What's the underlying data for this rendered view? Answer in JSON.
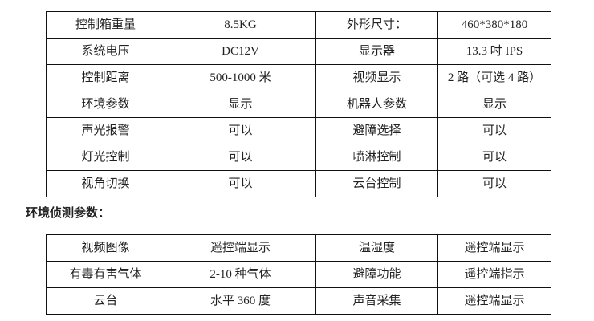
{
  "spec_table": [
    [
      "控制箱重量",
      "8.5KG",
      "外形尺寸：",
      "460*380*180"
    ],
    [
      "系统电压",
      "DC12V",
      "显示器",
      "13.3 吋 IPS"
    ],
    [
      "控制距离",
      "500-1000 米",
      "视频显示",
      "2 路（可选 4 路）"
    ],
    [
      "环境参数",
      "显示",
      "机器人参数",
      "显示"
    ],
    [
      "声光报警",
      "可以",
      "避障选择",
      "可以"
    ],
    [
      "灯光控制",
      "可以",
      "喷淋控制",
      "可以"
    ],
    [
      "视角切换",
      "可以",
      "云台控制",
      "可以"
    ]
  ],
  "env_heading": "环境侦测参数：",
  "env_table": [
    [
      "视频图像",
      "遥控端显示",
      "温湿度",
      "遥控端显示"
    ],
    [
      "有毒有害气体",
      "2-10 种气体",
      "避障功能",
      "遥控端指示"
    ],
    [
      "云台",
      "水平 360 度",
      "声音采集",
      "遥控端显示"
    ]
  ]
}
